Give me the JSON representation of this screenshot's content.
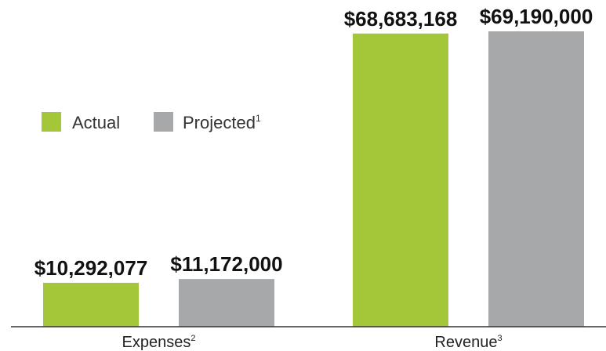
{
  "chart_data": {
    "type": "bar",
    "categories": [
      "Expenses",
      "Revenue"
    ],
    "category_footnotes": [
      "2",
      "3"
    ],
    "series": [
      {
        "name": "Actual",
        "color": "#a4c73a",
        "values": [
          10292077,
          68683168
        ],
        "value_labels": [
          "$10,292,077",
          "$68,683,168"
        ]
      },
      {
        "name": "Projected",
        "name_footnote": "1",
        "color": "#a7a8aa",
        "values": [
          11172000,
          69190000
        ],
        "value_labels": [
          "$11,172,000",
          "$69,190,000"
        ]
      }
    ],
    "title": "",
    "xlabel": "",
    "ylabel": "",
    "ylim": [
      0,
      69190000
    ],
    "grid": false,
    "legend_position": "left"
  }
}
